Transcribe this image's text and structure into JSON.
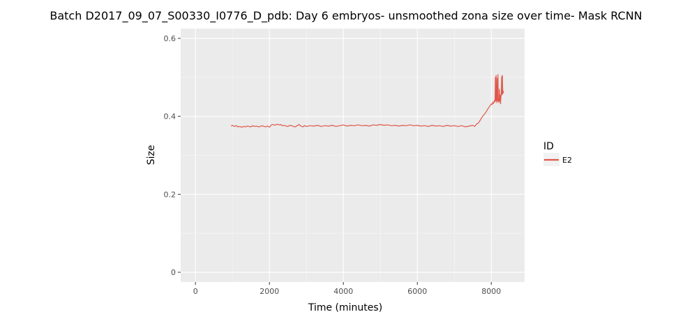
{
  "chart_data": {
    "type": "line",
    "title": "Batch D2017_09_07_S00330_I0776_D_pdb: Day 6 embryos- unsmoothed zona size over time- Mask RCNN",
    "xlabel": "Time (minutes)",
    "ylabel": "Size",
    "xlim": [
      -400,
      8900
    ],
    "ylim": [
      -0.025,
      0.625
    ],
    "xticks": [
      0,
      2000,
      4000,
      6000,
      8000
    ],
    "xtick_labels": [
      "0",
      "2000",
      "4000",
      "6000",
      "8000"
    ],
    "yticks": [
      0,
      0.2,
      0.4,
      0.6
    ],
    "ytick_labels": [
      "0",
      "0.2",
      "0.4",
      "0.6"
    ],
    "grid": true,
    "panel_background": "#ebebeb",
    "legend": {
      "title": "ID",
      "position": "right"
    },
    "series": [
      {
        "name": "E2",
        "color": "#e0584b",
        "x": [
          960,
          1000,
          1050,
          1100,
          1150,
          1200,
          1250,
          1300,
          1350,
          1400,
          1450,
          1500,
          1550,
          1600,
          1650,
          1700,
          1750,
          1800,
          1850,
          1900,
          1950,
          2000,
          2050,
          2100,
          2150,
          2200,
          2250,
          2300,
          2350,
          2400,
          2450,
          2500,
          2550,
          2600,
          2650,
          2700,
          2750,
          2800,
          2850,
          2900,
          2950,
          3000,
          3100,
          3200,
          3300,
          3400,
          3500,
          3600,
          3700,
          3800,
          3900,
          4000,
          4100,
          4200,
          4300,
          4400,
          4500,
          4600,
          4700,
          4800,
          4900,
          5000,
          5100,
          5200,
          5300,
          5400,
          5500,
          5600,
          5700,
          5800,
          5900,
          6000,
          6100,
          6200,
          6300,
          6400,
          6500,
          6600,
          6700,
          6800,
          6900,
          7000,
          7100,
          7200,
          7300,
          7400,
          7500,
          7550,
          7600,
          7650,
          7700,
          7750,
          7800,
          7850,
          7900,
          7950,
          8000,
          8020,
          8040,
          8060,
          8080,
          8100,
          8110,
          8120,
          8130,
          8140,
          8150,
          8160,
          8170,
          8180,
          8190,
          8200,
          8210,
          8220,
          8230,
          8240,
          8250,
          8260,
          8270,
          8280,
          8290,
          8300,
          8310,
          8320,
          8330
        ],
        "y": [
          0.375,
          0.377,
          0.374,
          0.376,
          0.373,
          0.374,
          0.372,
          0.374,
          0.373,
          0.375,
          0.374,
          0.373,
          0.376,
          0.374,
          0.375,
          0.373,
          0.374,
          0.376,
          0.374,
          0.373,
          0.375,
          0.372,
          0.378,
          0.379,
          0.377,
          0.38,
          0.378,
          0.379,
          0.376,
          0.377,
          0.375,
          0.374,
          0.377,
          0.376,
          0.374,
          0.373,
          0.376,
          0.379,
          0.375,
          0.373,
          0.376,
          0.374,
          0.376,
          0.375,
          0.377,
          0.374,
          0.376,
          0.375,
          0.377,
          0.374,
          0.376,
          0.378,
          0.375,
          0.377,
          0.376,
          0.378,
          0.376,
          0.377,
          0.375,
          0.378,
          0.377,
          0.379,
          0.377,
          0.378,
          0.376,
          0.377,
          0.375,
          0.377,
          0.376,
          0.378,
          0.376,
          0.377,
          0.375,
          0.376,
          0.374,
          0.377,
          0.375,
          0.376,
          0.374,
          0.377,
          0.375,
          0.376,
          0.374,
          0.376,
          0.373,
          0.375,
          0.377,
          0.374,
          0.38,
          0.383,
          0.39,
          0.398,
          0.404,
          0.41,
          0.418,
          0.425,
          0.432,
          0.43,
          0.436,
          0.433,
          0.44,
          0.437,
          0.5,
          0.44,
          0.505,
          0.445,
          0.435,
          0.498,
          0.44,
          0.507,
          0.438,
          0.445,
          0.435,
          0.47,
          0.44,
          0.455,
          0.432,
          0.448,
          0.46,
          0.502,
          0.455,
          0.505,
          0.458,
          0.465,
          0.46
        ]
      }
    ]
  }
}
